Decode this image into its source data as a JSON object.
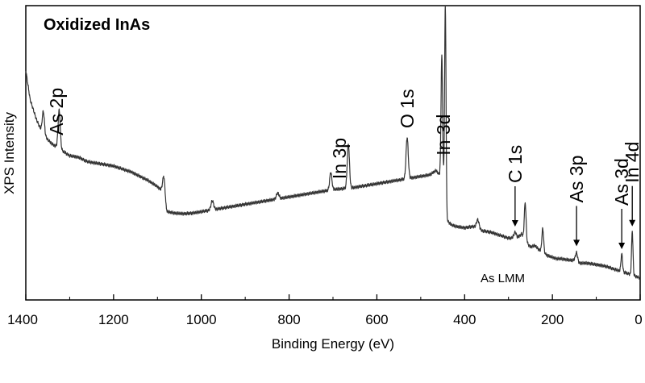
{
  "chart_data": {
    "type": "line",
    "title": "Oxidized InAs",
    "xlabel": "Binding Energy (eV)",
    "ylabel": "XPS Intensity",
    "xlim": [
      1400,
      0
    ],
    "x_reversed": true,
    "y_ticks_shown": false,
    "grid": false,
    "legend": "none",
    "x_ticks": [
      "1400",
      "1200",
      "1000",
      "800",
      "600",
      "400",
      "200",
      "0"
    ],
    "tick_values": [
      1400,
      1200,
      1000,
      800,
      600,
      400,
      200,
      0
    ],
    "ylim": [
      0,
      100
    ],
    "line_color": "#333333",
    "baseline": [
      [
        1400,
        78
      ],
      [
        1390,
        68
      ],
      [
        1375,
        61
      ],
      [
        1360,
        56
      ],
      [
        1340,
        53
      ],
      [
        1320,
        51
      ],
      [
        1300,
        49
      ],
      [
        1280,
        48.5
      ],
      [
        1260,
        47
      ],
      [
        1240,
        46.5
      ],
      [
        1220,
        46
      ],
      [
        1200,
        45.5
      ],
      [
        1180,
        44.5
      ],
      [
        1160,
        43.5
      ],
      [
        1140,
        42
      ],
      [
        1120,
        40.5
      ],
      [
        1100,
        38.5
      ],
      [
        1086,
        36.5
      ],
      [
        1080,
        30
      ],
      [
        1060,
        29.5
      ],
      [
        1040,
        29.3
      ],
      [
        1020,
        29.5
      ],
      [
        1000,
        30
      ],
      [
        980,
        30.5
      ],
      [
        960,
        31
      ],
      [
        940,
        31.5
      ],
      [
        920,
        32
      ],
      [
        900,
        32.5
      ],
      [
        880,
        33
      ],
      [
        860,
        33.5
      ],
      [
        840,
        34
      ],
      [
        820,
        34.5
      ],
      [
        800,
        35
      ],
      [
        780,
        35.5
      ],
      [
        760,
        36
      ],
      [
        740,
        36.5
      ],
      [
        720,
        37
      ],
      [
        700,
        37.5
      ],
      [
        680,
        37.8
      ],
      [
        660,
        38
      ],
      [
        640,
        38.5
      ],
      [
        620,
        39
      ],
      [
        600,
        39.5
      ],
      [
        580,
        40
      ],
      [
        560,
        40.5
      ],
      [
        540,
        41
      ],
      [
        520,
        41.5
      ],
      [
        500,
        42
      ],
      [
        480,
        42.5
      ],
      [
        465,
        44
      ],
      [
        455,
        42
      ],
      [
        448,
        39
      ],
      [
        444,
        30
      ],
      [
        440,
        27
      ],
      [
        430,
        25.5
      ],
      [
        420,
        25
      ],
      [
        400,
        24.5
      ],
      [
        380,
        25
      ],
      [
        360,
        23.5
      ],
      [
        340,
        23
      ],
      [
        320,
        22
      ],
      [
        300,
        21
      ],
      [
        280,
        21
      ],
      [
        270,
        22.5
      ],
      [
        262,
        20
      ],
      [
        250,
        18
      ],
      [
        240,
        18.5
      ],
      [
        230,
        17
      ],
      [
        220,
        16
      ],
      [
        210,
        15
      ],
      [
        200,
        14.5
      ],
      [
        190,
        14
      ],
      [
        180,
        14
      ],
      [
        160,
        13.5
      ],
      [
        150,
        13.5
      ],
      [
        140,
        12.5
      ],
      [
        120,
        12.5
      ],
      [
        100,
        12
      ],
      [
        80,
        11.5
      ],
      [
        60,
        10.5
      ],
      [
        40,
        9.5
      ],
      [
        28,
        9
      ],
      [
        20,
        8.5
      ],
      [
        10,
        8
      ],
      [
        0,
        7.5
      ]
    ],
    "peaks": [
      {
        "x": 1360,
        "height": 8,
        "width": 2.5
      },
      {
        "x": 1324,
        "height": 13,
        "width": 2.5
      },
      {
        "x": 1085,
        "height": 6,
        "width": 3
      },
      {
        "x": 975,
        "height": 3,
        "width": 3
      },
      {
        "x": 826,
        "height": 2,
        "width": 3
      },
      {
        "x": 705,
        "height": 6,
        "width": 2.5
      },
      {
        "x": 665,
        "height": 15,
        "width": 2.5
      },
      {
        "x": 531,
        "height": 14,
        "width": 2.5
      },
      {
        "x": 452,
        "height": 42,
        "width": 1.8
      },
      {
        "x": 444,
        "height": 70,
        "width": 1.6
      },
      {
        "x": 370,
        "height": 3,
        "width": 3
      },
      {
        "x": 285,
        "height": 2,
        "width": 3
      },
      {
        "x": 262,
        "height": 13,
        "width": 2
      },
      {
        "x": 222,
        "height": 8,
        "width": 2
      },
      {
        "x": 145,
        "height": 3,
        "width": 2.5
      },
      {
        "x": 42,
        "height": 6,
        "width": 1.8
      },
      {
        "x": 18,
        "height": 15,
        "width": 1.6
      }
    ],
    "annotations": [
      {
        "text": "As 2p",
        "x": 1330,
        "arrow": false
      },
      {
        "text": "In 3p",
        "x": 685,
        "arrow": false
      },
      {
        "text": "O 1s",
        "x": 531,
        "arrow": false
      },
      {
        "text": "In 3d",
        "x": 448,
        "arrow": false
      },
      {
        "text": "C 1s",
        "x": 285,
        "arrow": true
      },
      {
        "text": "As 3p",
        "x": 145,
        "arrow": true
      },
      {
        "text": "As 3d",
        "x": 42,
        "arrow": true
      },
      {
        "text": "In 4d",
        "x": 18,
        "arrow": true
      }
    ],
    "extra_label": "As LMM"
  }
}
